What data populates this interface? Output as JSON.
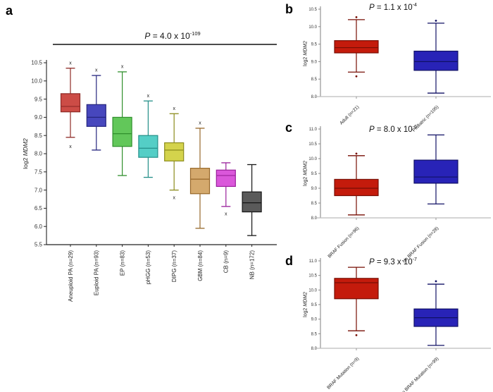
{
  "page": {
    "background": "#ffffff"
  },
  "chart_data": [
    {
      "panel_label": "a",
      "type": "box",
      "p_value": {
        "symbol": "P",
        "body": " = 4.0 x 10",
        "exponent": "-109"
      },
      "ylabel": {
        "plain": "log2 ",
        "italic": "MDM2"
      },
      "ylim": [
        5.5,
        10.5
      ],
      "yticks": [
        "5.5",
        "6.0",
        "6.5",
        "7.0",
        "7.5",
        "8.0",
        "8.5",
        "9.0",
        "9.5",
        "10.0",
        "10.5"
      ],
      "grid": false,
      "outlier_marker": "x",
      "categories": [
        "Aneuploid PA (n=29)",
        "Euploid PA (n=93)",
        "EP (n=83)",
        "pHGG (n=53)",
        "DIPG (n=37)",
        "GBM (n=84)",
        "CB (n=9)",
        "NB (n=172)"
      ],
      "boxes": [
        {
          "fill": "#cc4c46",
          "stroke": "#8e2a26",
          "whisker_low": 8.45,
          "q1": 9.15,
          "median": 9.3,
          "q3": 9.65,
          "whisker_high": 10.35,
          "outliers_high": [
            10.5
          ],
          "outliers_low": [
            8.2
          ]
        },
        {
          "fill": "#4747bd",
          "stroke": "#26267f",
          "whisker_low": 8.1,
          "q1": 8.75,
          "median": 9.0,
          "q3": 9.35,
          "whisker_high": 10.15,
          "outliers_high": [
            10.3
          ],
          "outliers_low": []
        },
        {
          "fill": "#62c75a",
          "stroke": "#2f8f2c",
          "whisker_low": 7.4,
          "q1": 8.2,
          "median": 8.55,
          "q3": 9.0,
          "whisker_high": 10.25,
          "outliers_high": [
            10.4
          ],
          "outliers_low": []
        },
        {
          "fill": "#54cec6",
          "stroke": "#238f88",
          "whisker_low": 7.35,
          "q1": 7.9,
          "median": 8.15,
          "q3": 8.5,
          "whisker_high": 9.45,
          "outliers_high": [
            9.6
          ],
          "outliers_low": []
        },
        {
          "fill": "#d4d34c",
          "stroke": "#8c8c1d",
          "whisker_low": 7.0,
          "q1": 7.8,
          "median": 8.1,
          "q3": 8.3,
          "whisker_high": 9.1,
          "outliers_high": [
            9.25
          ],
          "outliers_low": [
            6.8
          ]
        },
        {
          "fill": "#d4a96d",
          "stroke": "#97682a",
          "whisker_low": 5.95,
          "q1": 6.9,
          "median": 7.3,
          "q3": 7.6,
          "whisker_high": 8.7,
          "outliers_high": [
            8.85
          ],
          "outliers_low": []
        },
        {
          "fill": "#da57da",
          "stroke": "#99209b",
          "whisker_low": 6.55,
          "q1": 7.1,
          "median": 7.4,
          "q3": 7.55,
          "whisker_high": 7.75,
          "outliers_high": [],
          "outliers_low": [
            6.35
          ]
        },
        {
          "fill": "#5a5a5a",
          "stroke": "#161616",
          "whisker_low": 5.75,
          "q1": 6.4,
          "median": 6.65,
          "q3": 6.95,
          "whisker_high": 7.7,
          "outliers_high": [],
          "outliers_low": []
        }
      ]
    },
    {
      "panel_label": "b",
      "type": "box",
      "p_value": {
        "symbol": "P",
        "body": " = 1.1 x 10",
        "exponent": "-4"
      },
      "ylabel": {
        "plain": "log2 ",
        "italic": "MDM2"
      },
      "ylim": [
        8.0,
        10.5
      ],
      "yticks": [
        "8.0",
        "8.5",
        "9.0",
        "9.5",
        "10.0",
        "10.5"
      ],
      "grid": false,
      "outlier_marker": "dot",
      "categories": [
        "Adult (n=21)",
        "Pediatric (n=105)"
      ],
      "boxes": [
        {
          "fill": "#c41b0c",
          "stroke": "#770e04",
          "whisker_low": 8.7,
          "q1": 9.25,
          "median": 9.4,
          "q3": 9.6,
          "whisker_high": 10.2,
          "outliers_high": [
            10.27
          ],
          "outliers_low": [
            8.58
          ]
        },
        {
          "fill": "#2823b7",
          "stroke": "#101065",
          "whisker_low": 8.1,
          "q1": 8.75,
          "median": 9.0,
          "q3": 9.3,
          "whisker_high": 10.1,
          "outliers_high": [
            10.17
          ],
          "outliers_low": []
        }
      ]
    },
    {
      "panel_label": "c",
      "type": "box",
      "p_value": {
        "symbol": "P",
        "body": " = 8.0 x 10",
        "exponent": "-6"
      },
      "ylabel": {
        "plain": "log2 ",
        "italic": "MDM2"
      },
      "ylim": [
        8.0,
        11.0
      ],
      "yticks": [
        "8.0",
        "8.5",
        "9.0",
        "9.5",
        "10.0",
        "10.5",
        "11.0"
      ],
      "grid": false,
      "outlier_marker": "dot",
      "categories": [
        "BRAF Fusion (n=96)",
        "No BRAF Fusion (n=28)"
      ],
      "boxes": [
        {
          "fill": "#c41b0c",
          "stroke": "#770e04",
          "whisker_low": 8.1,
          "q1": 8.75,
          "median": 9.0,
          "q3": 9.3,
          "whisker_high": 10.1,
          "outliers_high": [
            10.17
          ],
          "outliers_low": []
        },
        {
          "fill": "#2823b7",
          "stroke": "#101065",
          "whisker_low": 8.47,
          "q1": 9.17,
          "median": 9.38,
          "q3": 9.95,
          "whisker_high": 10.8,
          "outliers_high": [],
          "outliers_low": []
        }
      ]
    },
    {
      "panel_label": "d",
      "type": "box",
      "p_value": {
        "symbol": "P",
        "body": " = 9.3 x 10",
        "exponent": "-7"
      },
      "ylabel": {
        "plain": "log2 ",
        "italic": "MDM2"
      },
      "ylim": [
        8.0,
        11.0
      ],
      "yticks": [
        "8.0",
        "8.5",
        "9.0",
        "9.5",
        "10.0",
        "10.5",
        "11.0"
      ],
      "grid": false,
      "outlier_marker": "dot",
      "categories": [
        "BRAF Mutation (n=9)",
        "No BRAF Mutation (n=99)"
      ],
      "boxes": [
        {
          "fill": "#c41b0c",
          "stroke": "#770e04",
          "whisker_low": 8.6,
          "q1": 9.7,
          "median": 10.25,
          "q3": 10.4,
          "whisker_high": 10.78,
          "outliers_high": [],
          "outliers_low": [
            8.45
          ]
        },
        {
          "fill": "#2823b7",
          "stroke": "#101065",
          "whisker_low": 8.1,
          "q1": 8.75,
          "median": 9.05,
          "q3": 9.35,
          "whisker_high": 10.2,
          "outliers_high": [
            10.3
          ],
          "outliers_low": []
        }
      ]
    }
  ]
}
